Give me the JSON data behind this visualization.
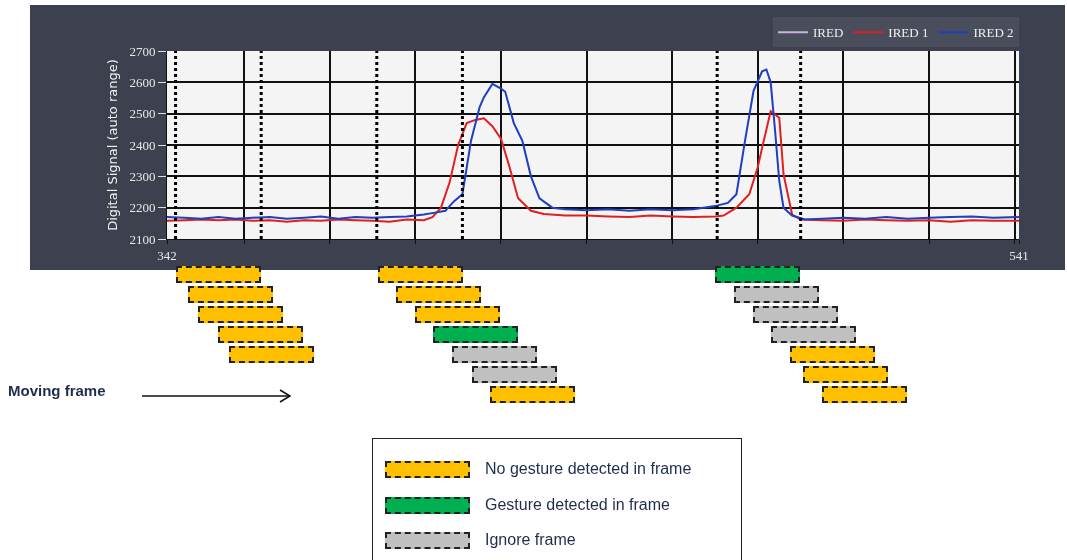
{
  "chart_data": {
    "type": "line",
    "ylabel": "Digital Signal (auto range)",
    "xlim": [
      342,
      541
    ],
    "xticks": [
      342,
      {
        "value": 360,
        "label": null
      },
      {
        "value": 380,
        "label": null
      },
      {
        "value": 400,
        "label": null
      },
      {
        "value": 420,
        "label": null
      },
      {
        "value": 440,
        "label": null
      },
      {
        "value": 460,
        "label": null
      },
      {
        "value": 480,
        "label": null
      },
      {
        "value": 500,
        "label": null
      },
      {
        "value": 520,
        "label": null
      },
      {
        "value": 540,
        "label": null
      },
      541
    ],
    "ylim": [
      2100,
      2700
    ],
    "yticks": [
      2100,
      2200,
      2300,
      2400,
      2500,
      2600,
      2700
    ],
    "grid": true,
    "legend": "top right",
    "series": [
      {
        "name": "IRED",
        "color": "#c8b4e0"
      },
      {
        "name": "IRED 1",
        "color": "#e02020",
        "x": [
          342,
          346,
          350,
          354,
          358,
          362,
          366,
          370,
          374,
          378,
          382,
          386,
          390,
          394,
          398,
          402,
          404,
          406,
          408,
          410,
          412,
          414,
          416,
          418,
          420,
          422,
          424,
          427,
          430,
          435,
          440,
          445,
          450,
          455,
          460,
          465,
          470,
          472,
          475,
          478,
          480,
          481,
          483,
          485,
          486,
          488,
          490,
          495,
          500,
          505,
          510,
          515,
          520,
          525,
          530,
          535,
          541
        ],
        "values": [
          2158,
          2160,
          2162,
          2160,
          2162,
          2158,
          2160,
          2155,
          2160,
          2158,
          2162,
          2160,
          2158,
          2155,
          2162,
          2160,
          2170,
          2200,
          2280,
          2400,
          2470,
          2480,
          2485,
          2460,
          2420,
          2330,
          2230,
          2190,
          2180,
          2175,
          2175,
          2172,
          2170,
          2175,
          2172,
          2170,
          2172,
          2175,
          2200,
          2243,
          2330,
          2391,
          2508,
          2487,
          2307,
          2178,
          2162,
          2160,
          2158,
          2162,
          2160,
          2158,
          2160,
          2155,
          2160,
          2158,
          2158
        ]
      },
      {
        "name": "IRED 2",
        "color": "#1f3fbf",
        "x": [
          342,
          346,
          350,
          354,
          358,
          362,
          366,
          370,
          374,
          378,
          382,
          386,
          390,
          394,
          398,
          402,
          405,
          407,
          409,
          411,
          413,
          415,
          416,
          418,
          420,
          421,
          423,
          425,
          427,
          429,
          432,
          435,
          440,
          445,
          450,
          455,
          460,
          465,
          470,
          473,
          475,
          477,
          479,
          481,
          482,
          483,
          484,
          485,
          486,
          488,
          491,
          495,
          500,
          505,
          510,
          515,
          520,
          525,
          530,
          535,
          541
        ],
        "values": [
          2170,
          2168,
          2165,
          2170,
          2165,
          2168,
          2170,
          2165,
          2168,
          2172,
          2165,
          2170,
          2168,
          2170,
          2172,
          2178,
          2185,
          2190,
          2220,
          2243,
          2413,
          2520,
          2552,
          2595,
          2580,
          2570,
          2470,
          2413,
          2300,
          2230,
          2200,
          2195,
          2192,
          2195,
          2190,
          2195,
          2192,
          2195,
          2205,
          2215,
          2243,
          2413,
          2573,
          2635,
          2641,
          2600,
          2450,
          2286,
          2200,
          2175,
          2162,
          2165,
          2168,
          2165,
          2170,
          2165,
          2168,
          2170,
          2172,
          2168,
          2170
        ]
      }
    ],
    "ref_lines": [
      {
        "axis": "x",
        "value": 344,
        "color": "#000000",
        "line_style": "dotted"
      },
      {
        "axis": "x",
        "value": 364,
        "color": "#000000",
        "line_style": "dotted"
      },
      {
        "axis": "x",
        "value": 391,
        "color": "#000000",
        "line_style": "dotted"
      },
      {
        "axis": "x",
        "value": 411,
        "color": "#000000",
        "line_style": "dotted"
      },
      {
        "axis": "x",
        "value": 470.5,
        "color": "#000000",
        "line_style": "dotted"
      },
      {
        "axis": "x",
        "value": 490,
        "color": "#000000",
        "line_style": "dotted"
      }
    ],
    "annotations": [
      "Moving frame",
      "No gesture detected in frame",
      "Gesture detected in frame",
      "Ignore frame"
    ]
  }
}
